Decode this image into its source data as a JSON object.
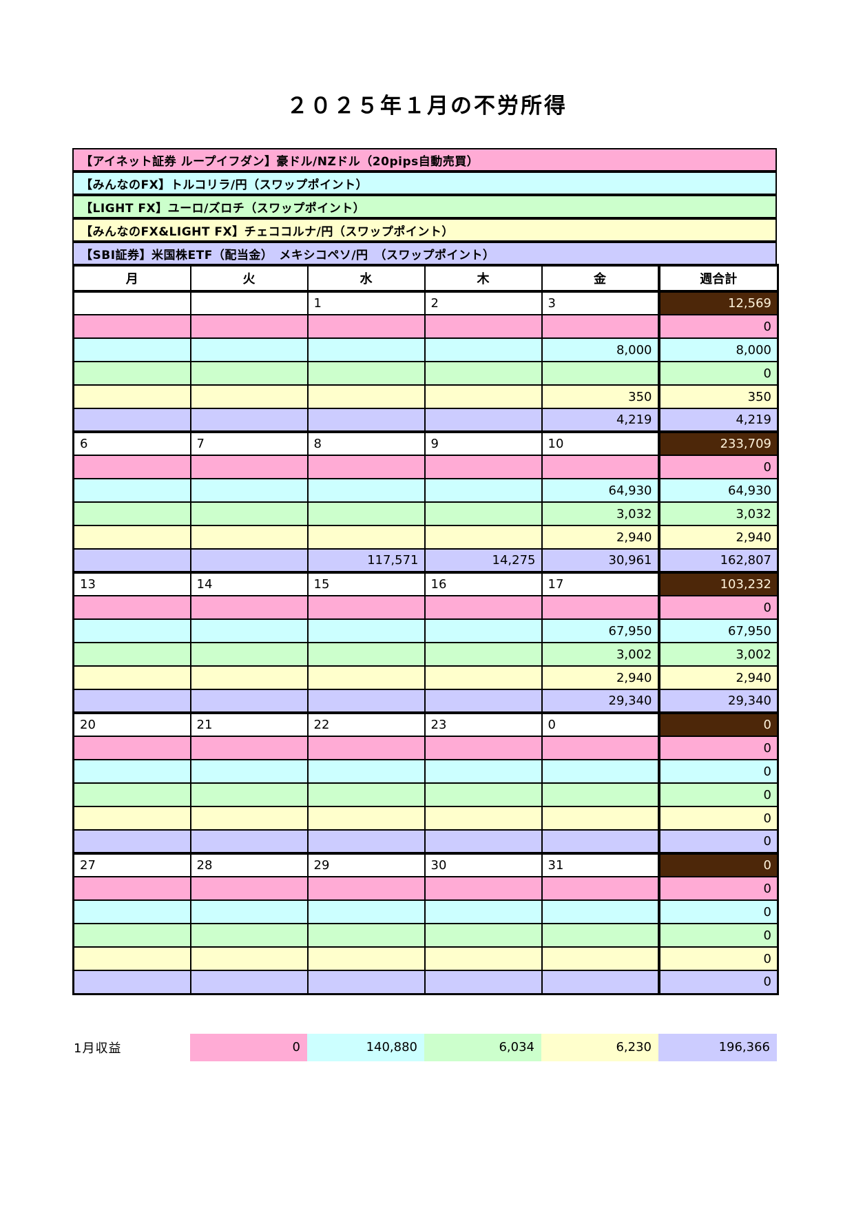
{
  "title": "２０２５年１月の不労所得",
  "legend": [
    {
      "label": "【アイネット証券 ループイフダン】豪ドル/NZドル（20pips自動売買）",
      "color": "#FFABD5"
    },
    {
      "label": "【みんなのFX】トルコリラ/円（スワップポイント）",
      "color": "#CCFFFF"
    },
    {
      "label": "【LIGHT FX】ユーロ/ズロチ（スワップポイント）",
      "color": "#CCFFCC"
    },
    {
      "label": "【みんなのFX&LIGHT FX】チェココルナ/円（スワップポイント）",
      "color": "#FFFFCC"
    },
    {
      "label": "【SBI証券】米国株ETF（配当金）　メキシコペソ/円　（スワップポイント）",
      "color": "#CCCCFF"
    }
  ],
  "calendar": {
    "day_headers": [
      "月",
      "火",
      "水",
      "木",
      "金"
    ],
    "week_total_header": "週合計",
    "week_total_cell_color": "#4D2709",
    "week_total_text_color": "#FFF3DB",
    "weeks": [
      {
        "dates": [
          "",
          "",
          "1",
          "2",
          "3"
        ],
        "week_total": "12,569",
        "rows": [
          {
            "cells": [
              "",
              "",
              "",
              "",
              ""
            ],
            "total": "0"
          },
          {
            "cells": [
              "",
              "",
              "",
              "",
              "8,000"
            ],
            "total": "8,000"
          },
          {
            "cells": [
              "",
              "",
              "",
              "",
              ""
            ],
            "total": "0"
          },
          {
            "cells": [
              "",
              "",
              "",
              "",
              "350"
            ],
            "total": "350"
          },
          {
            "cells": [
              "",
              "",
              "",
              "",
              "4,219"
            ],
            "total": "4,219"
          }
        ]
      },
      {
        "dates": [
          "6",
          "7",
          "8",
          "9",
          "10"
        ],
        "week_total": "233,709",
        "rows": [
          {
            "cells": [
              "",
              "",
              "",
              "",
              ""
            ],
            "total": "0"
          },
          {
            "cells": [
              "",
              "",
              "",
              "",
              "64,930"
            ],
            "total": "64,930"
          },
          {
            "cells": [
              "",
              "",
              "",
              "",
              "3,032"
            ],
            "total": "3,032"
          },
          {
            "cells": [
              "",
              "",
              "",
              "",
              "2,940"
            ],
            "total": "2,940"
          },
          {
            "cells": [
              "",
              "",
              "117,571",
              "14,275",
              "30,961"
            ],
            "total": "162,807"
          }
        ]
      },
      {
        "dates": [
          "13",
          "14",
          "15",
          "16",
          "17"
        ],
        "week_total": "103,232",
        "rows": [
          {
            "cells": [
              "",
              "",
              "",
              "",
              ""
            ],
            "total": "0"
          },
          {
            "cells": [
              "",
              "",
              "",
              "",
              "67,950"
            ],
            "total": "67,950"
          },
          {
            "cells": [
              "",
              "",
              "",
              "",
              "3,002"
            ],
            "total": "3,002"
          },
          {
            "cells": [
              "",
              "",
              "",
              "",
              "2,940"
            ],
            "total": "2,940"
          },
          {
            "cells": [
              "",
              "",
              "",
              "",
              "29,340"
            ],
            "total": "29,340"
          }
        ]
      },
      {
        "dates": [
          "20",
          "21",
          "22",
          "23",
          "0"
        ],
        "week_total": "0",
        "rows": [
          {
            "cells": [
              "",
              "",
              "",
              "",
              ""
            ],
            "total": "0"
          },
          {
            "cells": [
              "",
              "",
              "",
              "",
              ""
            ],
            "total": "0"
          },
          {
            "cells": [
              "",
              "",
              "",
              "",
              ""
            ],
            "total": "0"
          },
          {
            "cells": [
              "",
              "",
              "",
              "",
              ""
            ],
            "total": "0"
          },
          {
            "cells": [
              "",
              "",
              "",
              "",
              ""
            ],
            "total": "0"
          }
        ]
      },
      {
        "dates": [
          "27",
          "28",
          "29",
          "30",
          "31"
        ],
        "week_total": "0",
        "rows": [
          {
            "cells": [
              "",
              "",
              "",
              "",
              ""
            ],
            "total": "0"
          },
          {
            "cells": [
              "",
              "",
              "",
              "",
              ""
            ],
            "total": "0"
          },
          {
            "cells": [
              "",
              "",
              "",
              "",
              ""
            ],
            "total": "0"
          },
          {
            "cells": [
              "",
              "",
              "",
              "",
              ""
            ],
            "total": "0"
          },
          {
            "cells": [
              "",
              "",
              "",
              "",
              ""
            ],
            "total": "0"
          }
        ]
      }
    ]
  },
  "summary": {
    "label": "1月収益",
    "values": [
      "0",
      "140,880",
      "6,034",
      "6,230",
      "196,366"
    ]
  }
}
